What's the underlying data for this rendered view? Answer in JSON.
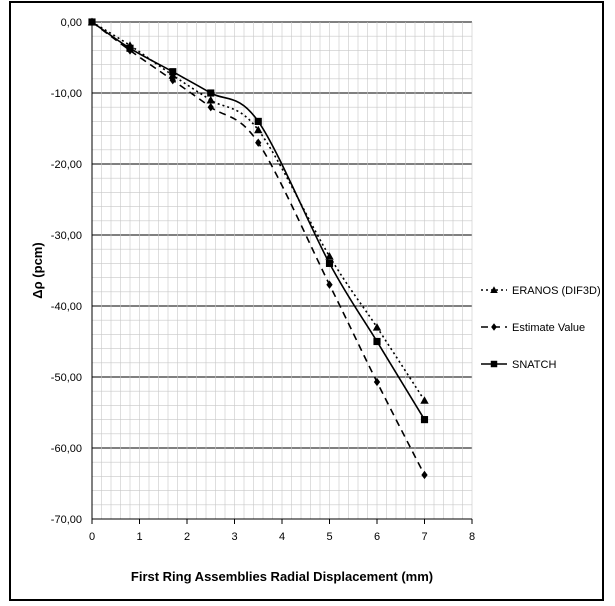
{
  "chart_data": {
    "type": "line",
    "xlabel": "First Ring Assemblies Radial Displacement (mm)",
    "ylabel": "Δρ (pcm)",
    "xlim": [
      0,
      8
    ],
    "ylim": [
      -70,
      0
    ],
    "x_ticks": [
      "0",
      "1",
      "2",
      "3",
      "4",
      "5",
      "6",
      "7",
      "8"
    ],
    "y_ticks": [
      "0,00",
      "-10,00",
      "-20,00",
      "-30,00",
      "-40,00",
      "-50,00",
      "-60,00",
      "-70,00"
    ],
    "grid": true,
    "legend_position": "right",
    "series": [
      {
        "name": "ERANOS (DIF3D)",
        "marker": "triangle",
        "line_style": "dotted",
        "color": "#000000",
        "x": [
          0,
          0.8,
          1.7,
          2.5,
          3.5,
          5,
          6,
          7
        ],
        "y": [
          0,
          -3.3,
          -7.5,
          -11,
          -15.2,
          -33,
          -43,
          -53.3
        ]
      },
      {
        "name": "Estimate Value",
        "marker": "diamond",
        "line_style": "dashed",
        "color": "#000000",
        "x": [
          0,
          0.8,
          1.7,
          2.5,
          3.5,
          5,
          6,
          7
        ],
        "y": [
          0,
          -4,
          -8.2,
          -12,
          -17,
          -37,
          -50.7,
          -63.8
        ]
      },
      {
        "name": "SNATCH",
        "marker": "square",
        "line_style": "solid",
        "color": "#000000",
        "x": [
          0,
          0.8,
          1.7,
          2.5,
          3.5,
          5,
          6,
          7
        ],
        "y": [
          0,
          -3.7,
          -7,
          -10,
          -14,
          -34,
          -45,
          -56
        ]
      }
    ]
  }
}
